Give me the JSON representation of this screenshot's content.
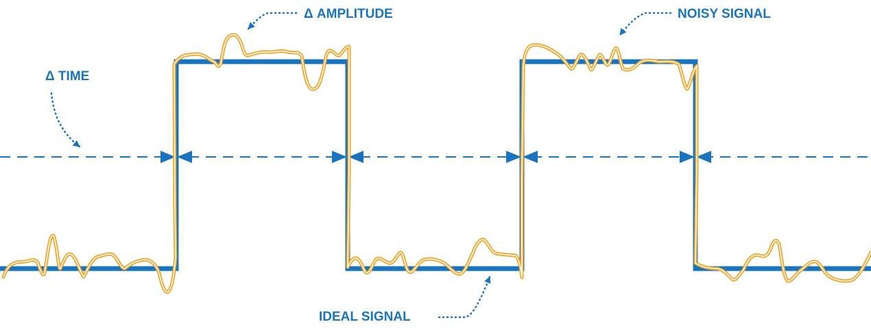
{
  "labels": {
    "amplitude": "Δ AMPLITUDE",
    "noisy": "NOISY SIGNAL",
    "time": "Δ TIME",
    "ideal": "IDEAL SIGNAL"
  },
  "colors": {
    "ideal": "#1874be",
    "noisy": "#f4a11e",
    "text": "#1874be",
    "background": "#ffffff"
  }
}
